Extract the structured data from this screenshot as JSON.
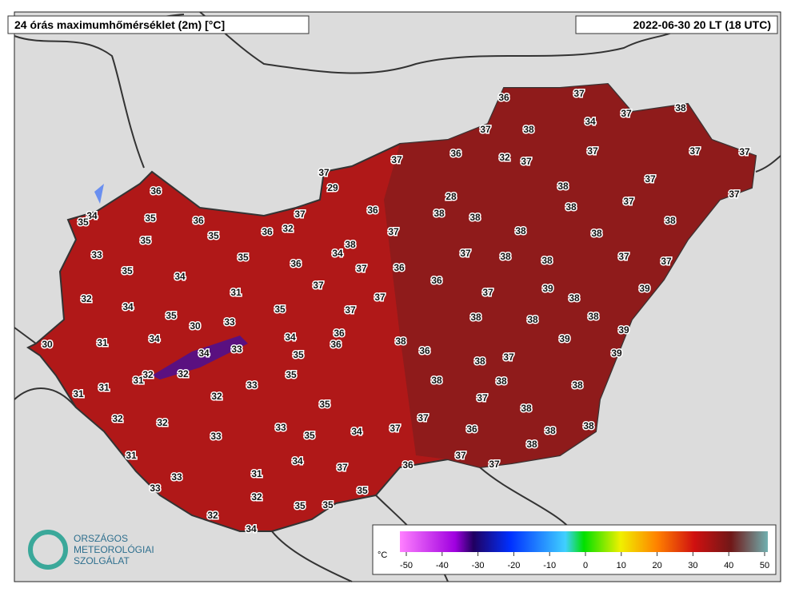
{
  "header": {
    "title": "24 órás maximumhőmérséklet (2m) [°C]",
    "time": "2022-06-30 20 LT (18 UTC)"
  },
  "stations": [
    36,
    37,
    37,
    38,
    34,
    37,
    38,
    32,
    37,
    37,
    37,
    37,
    36,
    37,
    37,
    29,
    28,
    38,
    37,
    37,
    36,
    34,
    35,
    35,
    36,
    37,
    36,
    38,
    38,
    38,
    37,
    38,
    35,
    36,
    32,
    37,
    38,
    38,
    35,
    33,
    35,
    38,
    34,
    36,
    37,
    36,
    37,
    38,
    38,
    37,
    37,
    35,
    34,
    37,
    36,
    37,
    39,
    38,
    39,
    32,
    34,
    31,
    37,
    35,
    37,
    35,
    30,
    33,
    38,
    38,
    38,
    39,
    30,
    31,
    34,
    34,
    36,
    36,
    38,
    36,
    39,
    34,
    33,
    35,
    39,
    38,
    37,
    32,
    31,
    32,
    35,
    31,
    31,
    32,
    33,
    38,
    38,
    38,
    35,
    37,
    38,
    32,
    32,
    37,
    33,
    33,
    35,
    34,
    37,
    36,
    38,
    38,
    38,
    31,
    34,
    37,
    36,
    37,
    37,
    33,
    31,
    33,
    35,
    32,
    35,
    35,
    32,
    34
  ],
  "legend": {
    "unit": "°C",
    "ticks": [
      -50,
      -40,
      -30,
      -20,
      -10,
      0,
      10,
      20,
      30,
      40,
      50
    ]
  },
  "logo": {
    "line1": "ORSZÁGOS",
    "line2": "METEOROLÓGIAI",
    "line3": "SZOLGÁLAT"
  }
}
